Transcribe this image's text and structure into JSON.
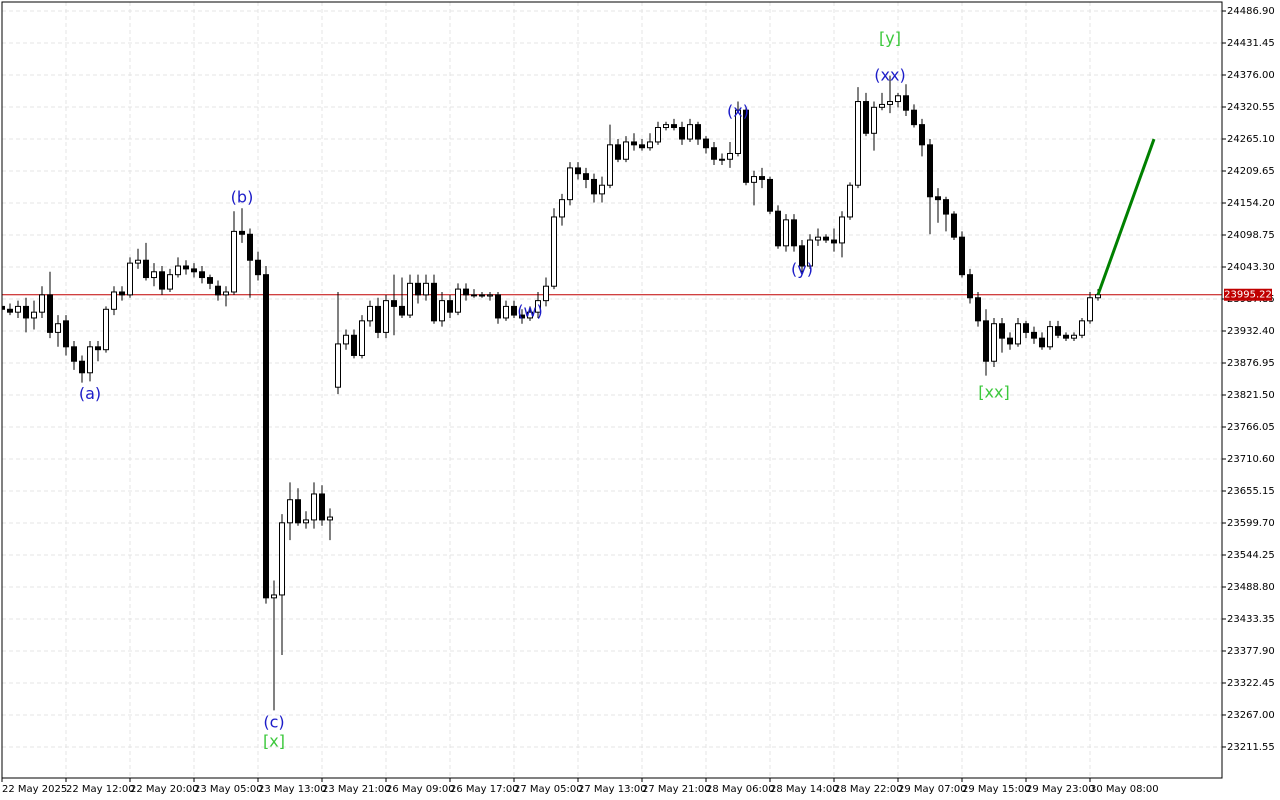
{
  "chart_data": {
    "type": "candlestick",
    "categories": [
      "22 May 2025",
      null,
      null,
      null,
      null,
      null,
      null,
      null,
      "22 May 12:00",
      null,
      null,
      null,
      null,
      null,
      null,
      null,
      "22 May 20:00",
      null,
      null,
      null,
      null,
      null,
      null,
      null,
      "23 May 05:00",
      null,
      null,
      null,
      null,
      null,
      null,
      null,
      "23 May 13:00",
      null,
      null,
      null,
      null,
      null,
      null,
      null,
      "23 May 21:00",
      null,
      null,
      null,
      null,
      null,
      null,
      null,
      "26 May 09:00",
      null,
      null,
      null,
      null,
      null,
      null,
      null,
      "26 May 17:00",
      null,
      null,
      null,
      null,
      null,
      null,
      null,
      "27 May 05:00",
      null,
      null,
      null,
      null,
      null,
      null,
      null,
      "27 May 13:00",
      null,
      null,
      null,
      null,
      null,
      null,
      null,
      "27 May 21:00",
      null,
      null,
      null,
      null,
      null,
      null,
      null,
      "28 May 06:00",
      null,
      null,
      null,
      null,
      null,
      null,
      null,
      "28 May 14:00",
      null,
      null,
      null,
      null,
      null,
      null,
      null,
      "28 May 22:00",
      null,
      null,
      null,
      null,
      null,
      null,
      null,
      "29 May 07:00",
      null,
      null,
      null,
      null,
      null,
      null,
      null,
      "29 May 15:00",
      null,
      null,
      null,
      null,
      null,
      null,
      null,
      "29 May 23:00",
      null,
      null,
      null,
      null,
      null,
      null,
      null,
      "30 May 08:00",
      null
    ],
    "open": [
      23975,
      23970,
      23965,
      23975,
      23955,
      23965,
      23995,
      23930,
      23950,
      23905,
      23880,
      23860,
      23905,
      23900,
      23970,
      24000,
      23995,
      24050,
      24055,
      24025,
      24035,
      24005,
      24030,
      24045,
      24040,
      24035,
      24025,
      24010,
      23995,
      24000,
      24105,
      24100,
      24055,
      24030,
      23470,
      23475,
      23600,
      23640,
      23600,
      23605,
      23650,
      23605,
      23835,
      23910,
      23925,
      23890,
      23950,
      23975,
      23930,
      23985,
      23975,
      23960,
      24015,
      23995,
      24015,
      23950,
      23985,
      23965,
      24005,
      23995,
      23995,
      23993,
      23995,
      23955,
      23975,
      23960,
      23955,
      23965,
      23985,
      24010,
      24130,
      24160,
      24215,
      24205,
      24195,
      24170,
      24185,
      24255,
      24230,
      24260,
      24255,
      24250,
      24260,
      24285,
      24290,
      24285,
      24265,
      24290,
      24265,
      24250,
      24230,
      24230,
      24240,
      24315,
      24190,
      24200,
      24195,
      24140,
      24080,
      24125,
      24080,
      24045,
      24090,
      24095,
      24090,
      24085,
      24130,
      24185,
      24330,
      24275,
      24320,
      24325,
      24330,
      24340,
      24315,
      24290,
      24255,
      24165,
      24160,
      24135,
      24095,
      24030,
      23990,
      23950,
      23880,
      23945,
      23920,
      23910,
      23945,
      23930,
      23920,
      23905,
      23940,
      23925,
      23920,
      23925,
      23950,
      23990
    ],
    "high": [
      23985,
      23980,
      23985,
      23990,
      23985,
      24010,
      24035,
      23960,
      23960,
      23915,
      23890,
      23915,
      23915,
      23975,
      24010,
      24010,
      24060,
      24075,
      24085,
      24050,
      24045,
      24040,
      24060,
      24055,
      24050,
      24045,
      24030,
      24020,
      24010,
      24140,
      24145,
      24110,
      24070,
      24045,
      23500,
      23615,
      23670,
      23660,
      23620,
      23670,
      23665,
      23625,
      24000,
      23935,
      23935,
      23960,
      23985,
      23990,
      23995,
      24030,
      24025,
      24030,
      24030,
      24030,
      24030,
      24000,
      23995,
      24015,
      24015,
      24005,
      24000,
      24000,
      24000,
      23985,
      23985,
      23970,
      23975,
      24000,
      24025,
      24145,
      24170,
      24225,
      24225,
      24215,
      24205,
      24200,
      24290,
      24265,
      24270,
      24275,
      24265,
      24275,
      24295,
      24295,
      24300,
      24295,
      24300,
      24295,
      24270,
      24260,
      24240,
      24260,
      24330,
      24320,
      24210,
      24215,
      24200,
      24150,
      24135,
      24135,
      24090,
      24100,
      24110,
      24100,
      24110,
      24140,
      24190,
      24355,
      24345,
      24330,
      24345,
      24375,
      24345,
      24360,
      24325,
      24300,
      24265,
      24180,
      24165,
      24140,
      24105,
      24040,
      24000,
      23970,
      23955,
      23955,
      23930,
      23955,
      23950,
      23940,
      23930,
      23950,
      23950,
      23930,
      23930,
      23955,
      24000,
      24005
    ],
    "low": [
      23965,
      23960,
      23955,
      23930,
      23935,
      23955,
      23920,
      23905,
      23890,
      23865,
      23843,
      23845,
      23880,
      23895,
      23960,
      23985,
      23990,
      24040,
      24020,
      24010,
      23995,
      24000,
      24025,
      24030,
      24025,
      24015,
      24005,
      23985,
      23975,
      23995,
      24085,
      23990,
      24020,
      23460,
      23275,
      23371,
      23570,
      23595,
      23590,
      23590,
      23595,
      23570,
      23823,
      23900,
      23885,
      23885,
      23940,
      23920,
      23920,
      23925,
      23955,
      23955,
      23980,
      23985,
      23945,
      23940,
      23955,
      23960,
      23985,
      23990,
      23990,
      23985,
      23945,
      23950,
      23955,
      23945,
      23950,
      23955,
      23975,
      24005,
      24115,
      24150,
      24195,
      24180,
      24155,
      24155,
      24180,
      24225,
      24225,
      24245,
      24245,
      24245,
      24255,
      24280,
      24280,
      24255,
      24260,
      24255,
      24240,
      24220,
      24220,
      24215,
      24235,
      24185,
      24150,
      24180,
      24135,
      24075,
      24070,
      24070,
      24030,
      24040,
      24080,
      24085,
      24070,
      24060,
      24125,
      24180,
      24270,
      24245,
      24315,
      24310,
      24320,
      24305,
      24285,
      24235,
      24100,
      24120,
      24105,
      24090,
      24025,
      23980,
      23940,
      23855,
      23870,
      23895,
      23900,
      23905,
      23920,
      23910,
      23900,
      23900,
      23920,
      23915,
      23915,
      23920,
      23945,
      23985
    ],
    "close": [
      23970,
      23965,
      23975,
      23955,
      23965,
      23995,
      23930,
      23945,
      23905,
      23880,
      23860,
      23905,
      23900,
      23970,
      24000,
      23995,
      24050,
      24055,
      24025,
      24035,
      24005,
      24030,
      24045,
      24040,
      24035,
      24025,
      24015,
      23995,
      24000,
      24105,
      24100,
      24055,
      24030,
      23470,
      23475,
      23600,
      23640,
      23600,
      23605,
      23650,
      23605,
      23610,
      23910,
      23925,
      23890,
      23950,
      23975,
      23930,
      23985,
      23975,
      23960,
      24015,
      23995,
      24015,
      23950,
      23985,
      23965,
      24005,
      23995,
      23995,
      23993,
      23995,
      23955,
      23975,
      23960,
      23955,
      23965,
      23985,
      24010,
      24130,
      24160,
      24215,
      24205,
      24195,
      24170,
      24185,
      24255,
      24230,
      24260,
      24255,
      24250,
      24260,
      24285,
      24290,
      24285,
      24265,
      24290,
      24265,
      24250,
      24230,
      24230,
      24240,
      24315,
      24190,
      24200,
      24195,
      24140,
      24080,
      24125,
      24080,
      24045,
      24090,
      24095,
      24090,
      24085,
      24130,
      24185,
      24330,
      24275,
      24320,
      24325,
      24330,
      24340,
      24315,
      24290,
      24255,
      24165,
      24160,
      24135,
      24095,
      24030,
      23990,
      23950,
      23880,
      23945,
      23920,
      23910,
      23945,
      23930,
      23920,
      23905,
      23940,
      23925,
      23920,
      23925,
      23950,
      23990,
      23995.22
    ],
    "up_color": "#ffffff",
    "down_color": "#000000",
    "ylim": [
      23157.8,
      24502.5
    ],
    "yticks": [
      {
        "value": 24486.9,
        "label": "24486.90"
      },
      24431.45,
      {
        "value": 24376,
        "label": "24376.00"
      },
      24320.55,
      {
        "value": 24265.1,
        "label": "24265.10"
      },
      24209.65,
      {
        "value": 24154.2,
        "label": "24154.20"
      },
      24098.75,
      {
        "value": 24043.3,
        "label": "24043.30"
      },
      23987.85,
      {
        "value": 23932.4,
        "label": "23932.40"
      },
      23876.95,
      {
        "value": 23821.5,
        "label": "23821.50"
      },
      23766.05,
      {
        "value": 23710.6,
        "label": "23710.60"
      },
      23655.15,
      {
        "value": 23599.7,
        "label": "23599.70"
      },
      23544.25,
      {
        "value": 23488.8,
        "label": "23488.80"
      },
      23433.35,
      {
        "value": 23377.9,
        "label": "23377.90"
      },
      23322.45,
      {
        "value": 23267,
        "label": "23267.00"
      },
      23211.55
    ],
    "grid": true,
    "last_price": 23995.22,
    "last_price_color": "#c00000",
    "projection": {
      "x": [
        137,
        144
      ],
      "values": [
        23995.22,
        24265
      ],
      "color": "#008000"
    },
    "annotations": [
      {
        "text": "(a)",
        "at": 11,
        "value": 23822,
        "color": "#1c1cc8"
      },
      {
        "text": "(b)",
        "at": 30,
        "value": 24163,
        "color": "#1c1cc8"
      },
      {
        "text": "(c)",
        "at": 34,
        "value": 23253,
        "color": "#1c1cc8"
      },
      {
        "text": "[x]",
        "at": 34,
        "value": 23220,
        "color": "#3cc83c"
      },
      {
        "text": "(w)",
        "at": 66,
        "value": 23965,
        "color": "#1c1cc8"
      },
      {
        "text": "(x)",
        "at": 92,
        "value": 24312,
        "color": "#1c1cc8"
      },
      {
        "text": "(y)",
        "at": 100,
        "value": 24038,
        "color": "#1c1cc8"
      },
      {
        "text": "[xx]",
        "at": 124,
        "value": 23825,
        "color": "#3cc83c"
      },
      {
        "text": "(xx)",
        "at": 111,
        "value": 24374,
        "color": "#1c1cc8"
      },
      {
        "text": "[y]",
        "at": 111,
        "value": 24438,
        "color": "#3cc83c"
      }
    ]
  }
}
